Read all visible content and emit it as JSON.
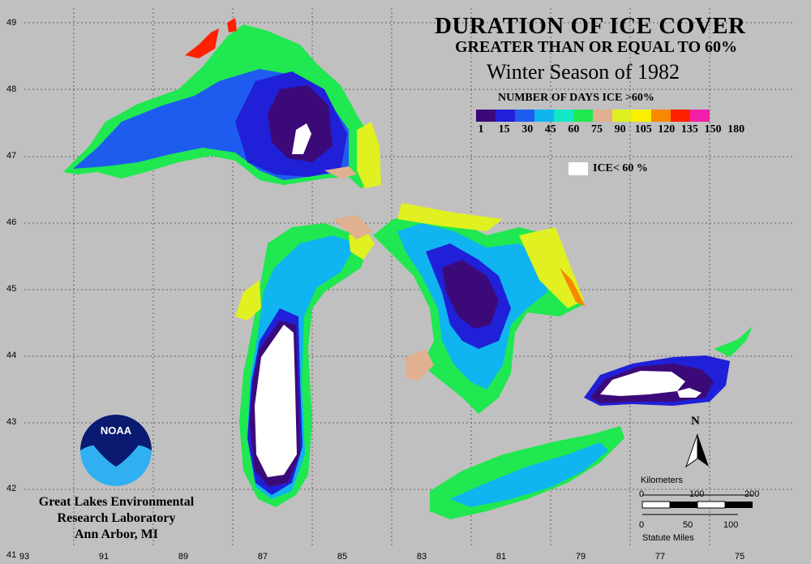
{
  "title": "DURATION OF ICE COVER",
  "subtitle": "GREATER THAN OR EQUAL TO 60%",
  "season": "Winter Season of 1982",
  "legend": {
    "title": "NUMBER OF DAYS ICE >60%",
    "colors": [
      "#3c0a78",
      "#2020d8",
      "#1e5cf0",
      "#10b4f0",
      "#10e8c8",
      "#20e850",
      "#e0b090",
      "#e0f020",
      "#f8f000",
      "#f88800",
      "#ff2000",
      "#f020a8"
    ],
    "ticks": [
      "1",
      "15",
      "30",
      "45",
      "60",
      "75",
      "90",
      "105",
      "120",
      "135",
      "150",
      "180"
    ],
    "ice_label": "ICE< 60 %"
  },
  "latitudes": [
    "49",
    "48",
    "47",
    "46",
    "45",
    "44",
    "43",
    "42",
    "41"
  ],
  "longitudes": [
    "93",
    "91",
    "89",
    "87",
    "85",
    "83",
    "81",
    "79",
    "77",
    "75"
  ],
  "lab": [
    "Great Lakes Environmental",
    "Research Laboratory",
    "Ann Arbor, MI"
  ],
  "logo_text": "NOAA",
  "scale": {
    "km_label": "Kilometers",
    "km_ticks": [
      "0",
      "100",
      "200"
    ],
    "mi_label": "Statute Miles",
    "mi_ticks": [
      "0",
      "50",
      "100"
    ]
  },
  "north": "N"
}
